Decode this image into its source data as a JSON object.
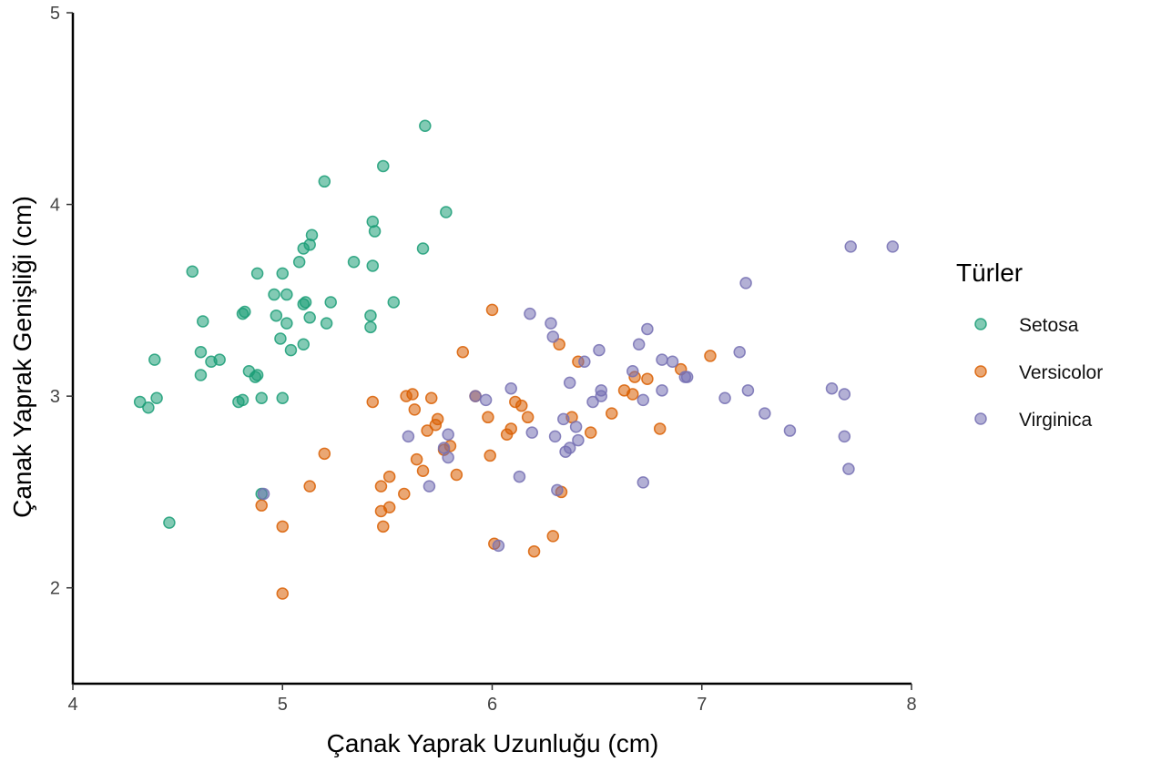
{
  "chart_data": {
    "type": "scatter",
    "title": "",
    "xlabel": "Çanak Yaprak Uzunluğu (cm)",
    "ylabel": "Çanak Yaprak Genişliği (cm)",
    "xlim": [
      4,
      8
    ],
    "ylim": [
      1.5,
      5
    ],
    "x_ticks": [
      "4",
      "5",
      "6",
      "7",
      "8"
    ],
    "y_ticks": [
      "2",
      "3",
      "4",
      "5"
    ],
    "grid": false,
    "legend": {
      "title": "Türler",
      "position": "right"
    },
    "series": [
      {
        "name": "Setosa",
        "color": "#1b9e77",
        "points": [
          [
            4.32,
            2.97
          ],
          [
            4.36,
            2.94
          ],
          [
            4.39,
            3.19
          ],
          [
            4.4,
            2.99
          ],
          [
            4.46,
            2.34
          ],
          [
            4.57,
            3.65
          ],
          [
            4.61,
            3.11
          ],
          [
            4.61,
            3.23
          ],
          [
            4.62,
            3.39
          ],
          [
            4.66,
            3.18
          ],
          [
            4.7,
            3.19
          ],
          [
            4.79,
            2.97
          ],
          [
            4.81,
            2.98
          ],
          [
            4.81,
            3.43
          ],
          [
            4.82,
            3.44
          ],
          [
            4.84,
            3.13
          ],
          [
            4.87,
            3.1
          ],
          [
            4.88,
            3.11
          ],
          [
            4.88,
            3.64
          ],
          [
            4.9,
            2.99
          ],
          [
            4.9,
            2.49
          ],
          [
            4.96,
            3.53
          ],
          [
            4.97,
            3.42
          ],
          [
            4.99,
            3.3
          ],
          [
            5.0,
            3.64
          ],
          [
            5.0,
            2.99
          ],
          [
            5.02,
            3.53
          ],
          [
            5.02,
            3.38
          ],
          [
            5.04,
            3.24
          ],
          [
            5.08,
            3.7
          ],
          [
            5.1,
            3.77
          ],
          [
            5.1,
            3.48
          ],
          [
            5.1,
            3.27
          ],
          [
            5.11,
            3.49
          ],
          [
            5.13,
            3.79
          ],
          [
            5.13,
            3.41
          ],
          [
            5.14,
            3.84
          ],
          [
            5.2,
            4.12
          ],
          [
            5.21,
            3.38
          ],
          [
            5.23,
            3.49
          ],
          [
            5.34,
            3.7
          ],
          [
            5.42,
            3.42
          ],
          [
            5.42,
            3.36
          ],
          [
            5.43,
            3.91
          ],
          [
            5.43,
            3.68
          ],
          [
            5.44,
            3.86
          ],
          [
            5.48,
            4.2
          ],
          [
            5.53,
            3.49
          ],
          [
            5.67,
            3.77
          ],
          [
            5.68,
            4.41
          ],
          [
            5.78,
            3.96
          ]
        ]
      },
      {
        "name": "Versicolor",
        "color": "#d95f02",
        "points": [
          [
            4.9,
            2.43
          ],
          [
            5.0,
            2.32
          ],
          [
            5.0,
            1.97
          ],
          [
            5.13,
            2.53
          ],
          [
            5.2,
            2.7
          ],
          [
            5.43,
            2.97
          ],
          [
            5.47,
            2.53
          ],
          [
            5.47,
            2.4
          ],
          [
            5.48,
            2.32
          ],
          [
            5.51,
            2.58
          ],
          [
            5.51,
            2.42
          ],
          [
            5.58,
            2.49
          ],
          [
            5.59,
            3.0
          ],
          [
            5.62,
            3.01
          ],
          [
            5.63,
            2.93
          ],
          [
            5.64,
            2.67
          ],
          [
            5.67,
            2.61
          ],
          [
            5.69,
            2.82
          ],
          [
            5.71,
            2.99
          ],
          [
            5.73,
            2.85
          ],
          [
            5.74,
            2.88
          ],
          [
            5.77,
            2.72
          ],
          [
            5.8,
            2.74
          ],
          [
            5.83,
            2.59
          ],
          [
            5.86,
            3.23
          ],
          [
            5.92,
            3.0
          ],
          [
            5.98,
            2.89
          ],
          [
            5.99,
            2.69
          ],
          [
            6.0,
            3.45
          ],
          [
            6.01,
            2.23
          ],
          [
            6.07,
            2.8
          ],
          [
            6.09,
            2.83
          ],
          [
            6.11,
            2.97
          ],
          [
            6.14,
            2.95
          ],
          [
            6.17,
            2.89
          ],
          [
            6.2,
            2.19
          ],
          [
            6.29,
            2.27
          ],
          [
            6.32,
            3.27
          ],
          [
            6.33,
            2.5
          ],
          [
            6.38,
            2.89
          ],
          [
            6.41,
            3.18
          ],
          [
            6.47,
            2.81
          ],
          [
            6.57,
            2.91
          ],
          [
            6.63,
            3.03
          ],
          [
            6.67,
            3.01
          ],
          [
            6.68,
            3.1
          ],
          [
            6.74,
            3.09
          ],
          [
            6.8,
            2.83
          ],
          [
            6.9,
            3.14
          ],
          [
            7.04,
            3.21
          ]
        ]
      },
      {
        "name": "Virginica",
        "color": "#7570b3",
        "points": [
          [
            4.91,
            2.49
          ],
          [
            5.6,
            2.79
          ],
          [
            5.7,
            2.53
          ],
          [
            5.77,
            2.73
          ],
          [
            5.79,
            2.68
          ],
          [
            5.79,
            2.8
          ],
          [
            5.92,
            3.0
          ],
          [
            5.97,
            2.98
          ],
          [
            6.03,
            2.22
          ],
          [
            6.09,
            3.04
          ],
          [
            6.13,
            2.58
          ],
          [
            6.18,
            3.43
          ],
          [
            6.19,
            2.81
          ],
          [
            6.28,
            3.38
          ],
          [
            6.29,
            3.31
          ],
          [
            6.3,
            2.79
          ],
          [
            6.31,
            2.51
          ],
          [
            6.34,
            2.88
          ],
          [
            6.35,
            2.71
          ],
          [
            6.37,
            3.07
          ],
          [
            6.37,
            2.73
          ],
          [
            6.4,
            2.84
          ],
          [
            6.41,
            2.77
          ],
          [
            6.44,
            3.18
          ],
          [
            6.48,
            2.97
          ],
          [
            6.51,
            3.24
          ],
          [
            6.52,
            3.0
          ],
          [
            6.52,
            3.03
          ],
          [
            6.67,
            3.13
          ],
          [
            6.7,
            3.27
          ],
          [
            6.72,
            2.98
          ],
          [
            6.72,
            2.55
          ],
          [
            6.74,
            3.35
          ],
          [
            6.81,
            3.19
          ],
          [
            6.81,
            3.03
          ],
          [
            6.86,
            3.18
          ],
          [
            6.92,
            3.1
          ],
          [
            6.93,
            3.1
          ],
          [
            7.11,
            2.99
          ],
          [
            7.18,
            3.23
          ],
          [
            7.21,
            3.59
          ],
          [
            7.22,
            3.03
          ],
          [
            7.3,
            2.91
          ],
          [
            7.42,
            2.82
          ],
          [
            7.62,
            3.04
          ],
          [
            7.68,
            3.01
          ],
          [
            7.68,
            2.79
          ],
          [
            7.7,
            2.62
          ],
          [
            7.71,
            3.78
          ],
          [
            7.91,
            3.78
          ]
        ]
      }
    ]
  }
}
